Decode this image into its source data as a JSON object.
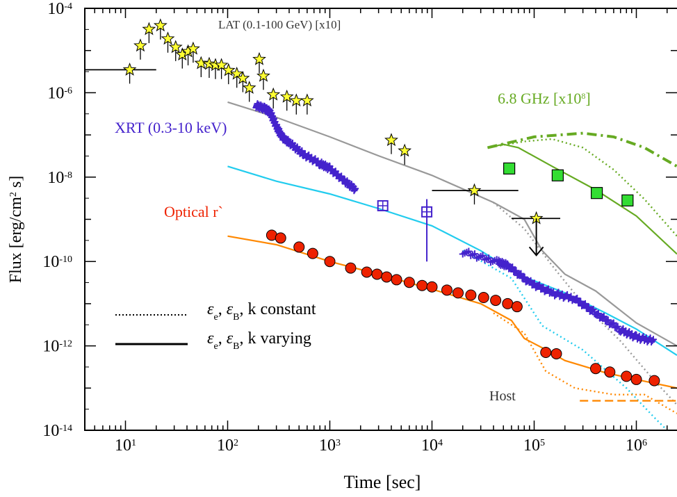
{
  "chart_data": {
    "type": "scatter",
    "xlabel": "Time [sec]",
    "ylabel": "Flux [erg/cm",
    "ylabel_sup": "2",
    "ylabel_tail": " s]",
    "xscale": "log",
    "yscale": "log",
    "xlim": [
      4,
      2500000
    ],
    "ylim": [
      1e-14,
      0.0001
    ],
    "x_ticks": [
      {
        "base": "10",
        "exp": "1",
        "value": 10
      },
      {
        "base": "10",
        "exp": "2",
        "value": 100
      },
      {
        "base": "10",
        "exp": "3",
        "value": 1000
      },
      {
        "base": "10",
        "exp": "4",
        "value": 10000
      },
      {
        "base": "10",
        "exp": "5",
        "value": 100000
      },
      {
        "base": "10",
        "exp": "6",
        "value": 1000000
      }
    ],
    "y_ticks": [
      {
        "base": "10",
        "exp": "-4",
        "value": 0.0001
      },
      {
        "base": "10",
        "exp": "-6",
        "value": 1e-06
      },
      {
        "base": "10",
        "exp": "-8",
        "value": 1e-08
      },
      {
        "base": "10",
        "exp": "-10",
        "value": 1e-10
      },
      {
        "base": "10",
        "exp": "-12",
        "value": 1e-12
      },
      {
        "base": "10",
        "exp": "-14",
        "value": 1e-14
      }
    ],
    "labels": {
      "lat": "LAT (0.1-100 GeV) [x10]",
      "xrt": "XRT (0.3-10 keV)",
      "optical": "Optical r`",
      "radio": "6.8 GHz [x10",
      "radio_sup": "8",
      "radio_tail": "]",
      "host": "Host"
    },
    "legend": [
      {
        "style": "dotted",
        "eps": "ε",
        "sub_e": "e",
        "sub_b": "B",
        "text": ", k constant"
      },
      {
        "style": "solid",
        "eps": "ε",
        "sub_e": "e",
        "sub_b": "B",
        "text": ", k varying"
      }
    ],
    "colors": {
      "lat": "#ffff33",
      "xrt": "#4422cc",
      "optical": "#ee2200",
      "radio": "#66aa22",
      "radio_marker": "#33dd33",
      "model_gray": "#999999",
      "model_cyan": "#22ccee",
      "model_orange": "#ff8800",
      "axis": "#000000"
    },
    "series": [
      {
        "key": "lat",
        "marker": "star",
        "points": [
          [
            11,
            3.5e-06
          ],
          [
            14,
            1.3e-05
          ],
          [
            17,
            3.2e-05
          ],
          [
            22,
            3.9e-05
          ],
          [
            26,
            1.9e-05
          ],
          [
            31,
            1.2e-05
          ],
          [
            36,
            8e-06
          ],
          [
            41,
            9.5e-06
          ],
          [
            46,
            1.1e-05
          ],
          [
            55,
            5e-06
          ],
          [
            66,
            4.8e-06
          ],
          [
            76,
            4.5e-06
          ],
          [
            87,
            4.5e-06
          ],
          [
            102,
            3.4e-06
          ],
          [
            123,
            2.8e-06
          ],
          [
            141,
            2.2e-06
          ],
          [
            163,
            1.3e-06
          ],
          [
            204,
            6.2e-06
          ],
          [
            224,
            2.5e-06
          ],
          [
            280,
            9e-07
          ],
          [
            380,
            8e-07
          ],
          [
            470,
            6.5e-07
          ],
          [
            600,
            6.5e-07
          ],
          [
            4000,
            7.5e-08
          ],
          [
            5400,
            4.2e-08
          ],
          [
            26000,
            4.8e-09
          ],
          [
            105000,
            1.05e-09
          ]
        ],
        "xerr_points": [
          [
            4,
            20,
            3.5e-06
          ],
          [
            10000,
            70000,
            4.8e-09
          ],
          [
            60000,
            180000,
            1.05e-09
          ]
        ],
        "upper_limit": [
          105000,
          1.05e-09,
          1.4e-10
        ]
      },
      {
        "key": "xrt",
        "marker": "cross",
        "segments": [
          [
            [
              190,
              5e-07
            ],
            [
              230,
              4.2e-07
            ],
            [
              260,
              3.5e-07
            ],
            [
              300,
              1.6e-07
            ],
            [
              340,
              9e-08
            ],
            [
              420,
              6e-08
            ],
            [
              550,
              3.5e-08
            ],
            [
              800,
              2.1e-08
            ],
            [
              1000,
              1.6e-08
            ],
            [
              1400,
              8e-09
            ],
            [
              1800,
              5e-09
            ]
          ],
          [
            [
              20000,
              1.7e-10
            ],
            [
              45000,
              9.5e-11
            ],
            [
              55000,
              8e-11
            ],
            [
              90000,
              3.2e-11
            ],
            [
              150000,
              1.8e-11
            ],
            [
              250000,
              1.3e-11
            ],
            [
              400000,
              6e-12
            ],
            [
              700000,
              2.4e-12
            ],
            [
              1000000,
              1.6e-12
            ],
            [
              1500000,
              1.3e-12
            ]
          ]
        ],
        "boxes": [
          [
            3300,
            2.1e-09
          ],
          [
            8900,
            1.5e-09
          ]
        ],
        "box_err": [
          [
            8900,
            1e-10,
            3e-09
          ]
        ]
      },
      {
        "key": "optical",
        "marker": "circle",
        "points": [
          [
            270,
            4.2e-10
          ],
          [
            330,
            3.6e-10
          ],
          [
            500,
            2.2e-10
          ],
          [
            680,
            1.55e-10
          ],
          [
            1000,
            1e-10
          ],
          [
            1600,
            7e-11
          ],
          [
            2300,
            5.6e-11
          ],
          [
            2900,
            5e-11
          ],
          [
            3600,
            4.3e-11
          ],
          [
            4500,
            3.7e-11
          ],
          [
            6000,
            3.2e-11
          ],
          [
            8000,
            2.7e-11
          ],
          [
            10000,
            2.5e-11
          ],
          [
            14000,
            2.1e-11
          ],
          [
            18000,
            1.8e-11
          ],
          [
            24000,
            1.6e-11
          ],
          [
            32000,
            1.4e-11
          ],
          [
            42000,
            1.2e-11
          ],
          [
            55000,
            1e-11
          ],
          [
            68000,
            8.5e-12
          ],
          [
            130000,
            7e-13
          ],
          [
            165000,
            6.5e-13
          ],
          [
            400000,
            2.9e-13
          ],
          [
            550000,
            2.4e-13
          ],
          [
            800000,
            1.9e-13
          ],
          [
            1000000,
            1.6e-13
          ],
          [
            1500000,
            1.5e-13
          ]
        ]
      },
      {
        "key": "radio",
        "marker": "square",
        "points": [
          [
            57000,
            1.6e-08
          ],
          [
            170000,
            1.1e-08
          ],
          [
            410000,
            4.2e-09
          ],
          [
            820000,
            2.8e-09
          ]
        ]
      }
    ],
    "models": [
      {
        "key": "gray_solid",
        "color": "#999999",
        "style": "solid",
        "points": [
          [
            100,
            6e-07
          ],
          [
            300,
            2.6e-07
          ],
          [
            1000,
            9e-08
          ],
          [
            3000,
            3.2e-08
          ],
          [
            10000,
            1.1e-08
          ],
          [
            40000,
            2.5e-09
          ],
          [
            80000,
            1e-09
          ],
          [
            120000,
            1.8e-10
          ],
          [
            200000,
            5e-11
          ],
          [
            400000,
            2e-11
          ],
          [
            1000000,
            3.5e-12
          ],
          [
            2500000,
            1e-12
          ]
        ]
      },
      {
        "key": "gray_dotted",
        "color": "#999999",
        "style": "dotted",
        "points": [
          [
            40000,
            2.5e-09
          ],
          [
            80000,
            6e-10
          ],
          [
            150000,
            8e-11
          ],
          [
            300000,
            1e-11
          ],
          [
            700000,
            1.3e-12
          ],
          [
            1500000,
            1.5e-13
          ],
          [
            2500000,
            4e-14
          ]
        ]
      },
      {
        "key": "cyan_solid",
        "color": "#22ccee",
        "style": "solid",
        "points": [
          [
            100,
            1.8e-08
          ],
          [
            300,
            8e-09
          ],
          [
            1000,
            4e-09
          ],
          [
            3000,
            1.8e-09
          ],
          [
            10000,
            7e-10
          ],
          [
            30000,
            1.8e-10
          ],
          [
            70000,
            5e-11
          ],
          [
            100000,
            3.5e-11
          ],
          [
            200000,
            1.8e-11
          ],
          [
            500000,
            6e-12
          ],
          [
            1000000,
            2.5e-12
          ],
          [
            2500000,
            6e-13
          ]
        ]
      },
      {
        "key": "cyan_dotted",
        "color": "#22ccee",
        "style": "dotted",
        "points": [
          [
            20000,
            1.8e-10
          ],
          [
            60000,
            4e-11
          ],
          [
            120000,
            3e-12
          ],
          [
            300000,
            8e-13
          ],
          [
            800000,
            1e-13
          ],
          [
            1500000,
            2e-14
          ],
          [
            2000000,
            1e-14
          ]
        ]
      },
      {
        "key": "orange_solid",
        "color": "#ff8800",
        "style": "solid",
        "points": [
          [
            100,
            4e-10
          ],
          [
            300,
            2.5e-10
          ],
          [
            1000,
            1e-10
          ],
          [
            3000,
            5e-11
          ],
          [
            10000,
            2.2e-11
          ],
          [
            30000,
            1e-11
          ],
          [
            60000,
            4e-12
          ],
          [
            80000,
            1.5e-12
          ],
          [
            120000,
            9e-13
          ],
          [
            200000,
            4.5e-13
          ],
          [
            500000,
            2.3e-13
          ],
          [
            1000000,
            1.6e-13
          ],
          [
            2500000,
            1e-13
          ]
        ]
      },
      {
        "key": "orange_dotted",
        "color": "#ff8800",
        "style": "dotted",
        "points": [
          [
            40000,
            6e-12
          ],
          [
            80000,
            2e-12
          ],
          [
            130000,
            2.5e-13
          ],
          [
            250000,
            1e-13
          ],
          [
            600000,
            7e-14
          ],
          [
            1200000,
            7e-14
          ],
          [
            2500000,
            2.5e-14
          ]
        ]
      },
      {
        "key": "orange_dashed",
        "color": "#ff8800",
        "style": "dashed",
        "points": [
          [
            280000,
            5e-14
          ],
          [
            2500000,
            5e-14
          ]
        ]
      },
      {
        "key": "green_solid",
        "color": "#66aa22",
        "style": "solid",
        "points": [
          [
            35000,
            5e-08
          ],
          [
            50000,
            6e-08
          ],
          [
            70000,
            5e-08
          ],
          [
            150000,
            1.8e-08
          ],
          [
            400000,
            5e-09
          ],
          [
            1000000,
            1.2e-09
          ],
          [
            2500000,
            1.5e-10
          ]
        ]
      },
      {
        "key": "green_dotted",
        "color": "#66aa22",
        "style": "dotted",
        "points": [
          [
            35000,
            5e-08
          ],
          [
            80000,
            7e-08
          ],
          [
            150000,
            8e-08
          ],
          [
            300000,
            5e-08
          ],
          [
            600000,
            1.5e-08
          ],
          [
            1200000,
            3e-09
          ],
          [
            2500000,
            4e-10
          ]
        ]
      },
      {
        "key": "green_dashdot",
        "color": "#66aa22",
        "style": "dashdot",
        "points": [
          [
            35000,
            5e-08
          ],
          [
            100000,
            9e-08
          ],
          [
            300000,
            1.1e-07
          ],
          [
            600000,
            9e-08
          ],
          [
            1200000,
            5e-08
          ],
          [
            2500000,
            1.8e-08
          ]
        ]
      }
    ]
  }
}
